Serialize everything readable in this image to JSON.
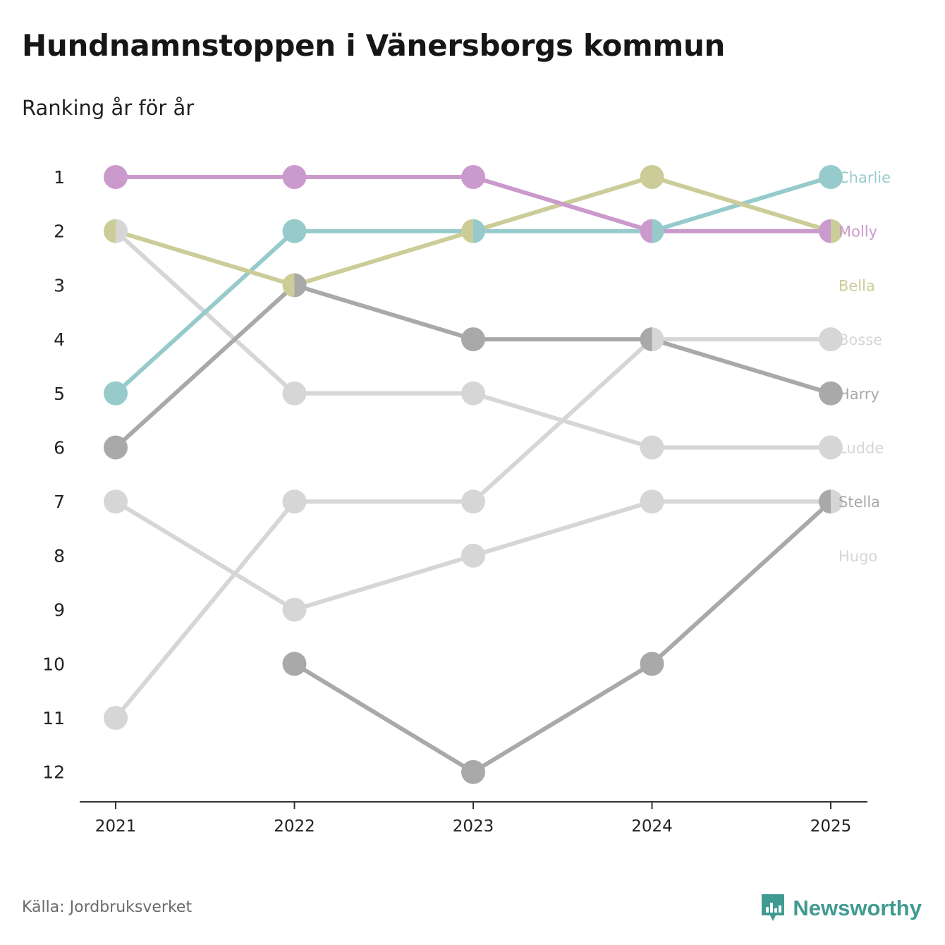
{
  "header": {
    "title": "Hundnamnstoppen i Vänersborgs kommun",
    "subtitle": "Ranking år för år"
  },
  "footer": {
    "source": "Källa: Jordbruksverket",
    "brand": "Newsworthy"
  },
  "colors": {
    "Charlie": "#97cbcb",
    "Molly": "#cb9acd",
    "Bella": "#cccc99",
    "Bosse": "#d6d6d6",
    "Harry": "#a9a9a9",
    "Ludde": "#d6d6d6",
    "Stella": "#a9a9a9",
    "Hugo": "#d6d6d6",
    "axis": "#333333",
    "brand": "#3f9a91"
  },
  "chart_data": {
    "type": "line",
    "title": "Hundnamnstoppen i Vänersborgs kommun",
    "subtitle": "Ranking år för år",
    "xlabel": "",
    "ylabel": "",
    "x": [
      "2021",
      "2022",
      "2023",
      "2024",
      "2025"
    ],
    "y_ticks": [
      1,
      2,
      3,
      4,
      5,
      6,
      7,
      8,
      9,
      10,
      11,
      12
    ],
    "ylim": [
      1,
      12
    ],
    "y_inverted": true,
    "series": [
      {
        "name": "Charlie",
        "values": [
          5,
          2,
          2,
          2,
          1
        ],
        "label_rank": 1
      },
      {
        "name": "Molly",
        "values": [
          1,
          1,
          1,
          2,
          2
        ],
        "label_rank": 2
      },
      {
        "name": "Bella",
        "values": [
          2,
          3,
          2,
          1,
          2
        ],
        "label_rank": 3
      },
      {
        "name": "Bosse",
        "values": [
          11,
          7,
          7,
          4,
          4
        ],
        "label_rank": 4
      },
      {
        "name": "Harry",
        "values": [
          6,
          3,
          4,
          4,
          5
        ],
        "label_rank": 5
      },
      {
        "name": "Ludde",
        "values": [
          2,
          5,
          5,
          6,
          6
        ],
        "label_rank": 6
      },
      {
        "name": "Stella",
        "values": [
          null,
          10,
          12,
          10,
          7
        ],
        "label_rank": 7
      },
      {
        "name": "Hugo",
        "values": [
          7,
          9,
          8,
          7,
          7
        ],
        "label_rank": 8
      }
    ]
  }
}
